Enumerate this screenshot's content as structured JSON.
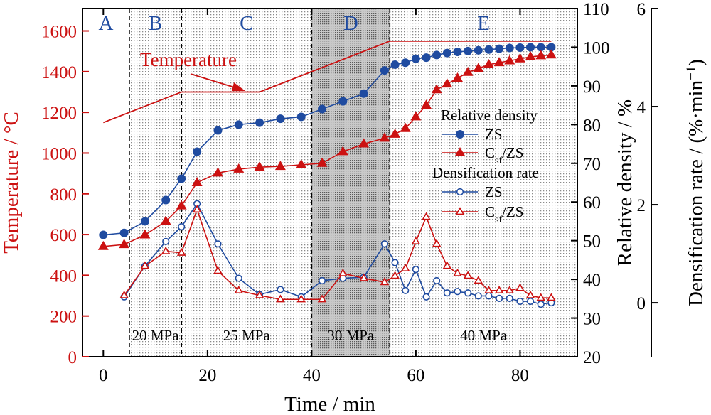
{
  "chart_data": {
    "type": "line",
    "x_axis": {
      "label": "Time / min",
      "range": [
        -4,
        91
      ],
      "ticks": [
        0,
        20,
        40,
        60,
        80
      ]
    },
    "y_left": {
      "label": "Temperature / °C",
      "color": "#cc1111",
      "range": [
        0,
        1710
      ],
      "ticks": [
        0,
        200,
        400,
        600,
        800,
        1000,
        1200,
        1400,
        1600
      ]
    },
    "y_right1": {
      "label": "Relative density / %",
      "range": [
        20,
        110
      ],
      "ticks": [
        20,
        30,
        40,
        50,
        60,
        70,
        80,
        90,
        100,
        110
      ]
    },
    "y_right2": {
      "label_main": "Densification rate / (%·min",
      "label_sup": "−1",
      "label_end": ")",
      "range": [
        -1.1,
        6
      ],
      "ticks": [
        0,
        2,
        4,
        6
      ]
    },
    "stages": [
      {
        "label": "A",
        "x0": -4,
        "x1": 5,
        "shade": "none"
      },
      {
        "label": "B",
        "x0": 5,
        "x1": 15,
        "shade": "light",
        "pressure": "20 MPa"
      },
      {
        "label": "C",
        "x0": 15,
        "x1": 40,
        "shade": "light",
        "pressure": "25 MPa"
      },
      {
        "label": "D",
        "x0": 40,
        "x1": 55,
        "shade": "dark",
        "pressure": "30 MPa"
      },
      {
        "label": "E",
        "x0": 55,
        "x1": 91,
        "shade": "light",
        "pressure": "40 MPa"
      }
    ],
    "stage_boundaries": [
      5,
      15,
      40,
      55
    ],
    "temperature": {
      "name": "Temperature",
      "color": "#cc1111",
      "x": [
        0,
        15,
        30,
        55,
        86
      ],
      "y": [
        1150,
        1300,
        1300,
        1550,
        1550
      ]
    },
    "series": [
      {
        "name": "ZS",
        "group": "Relative density",
        "axis": "y_right1",
        "color": "#1f4ba0",
        "marker": "circle",
        "filled": true,
        "x": [
          0,
          4,
          8,
          12,
          15,
          18,
          22,
          26,
          30,
          34,
          38,
          42,
          46,
          50,
          54,
          56,
          58,
          60,
          62,
          64,
          66,
          68,
          70,
          72,
          74,
          76,
          78,
          80,
          82,
          84,
          86
        ],
        "y": [
          51.5,
          52,
          55,
          60.5,
          66,
          73,
          78.5,
          80,
          80.5,
          81.5,
          82,
          84,
          86,
          88,
          94,
          95.5,
          96,
          97,
          97.3,
          98,
          98.5,
          98.8,
          99,
          99.2,
          99.4,
          99.6,
          99.8,
          99.9,
          100,
          100,
          100
        ]
      },
      {
        "name": "Csf/ZS",
        "group": "Relative density",
        "axis": "y_right1",
        "color": "#cc1111",
        "marker": "triangle",
        "filled": true,
        "x": [
          0,
          4,
          8,
          12,
          15,
          18,
          22,
          26,
          30,
          34,
          38,
          42,
          46,
          50,
          54,
          56,
          58,
          60,
          62,
          64,
          66,
          68,
          70,
          72,
          74,
          76,
          78,
          80,
          82,
          84,
          86
        ],
        "y": [
          48.5,
          49,
          51.5,
          55,
          59,
          65,
          67.5,
          68.5,
          69,
          69.2,
          69.6,
          70,
          73,
          75,
          76.5,
          77.5,
          79,
          82,
          85,
          89,
          90.5,
          92,
          93.5,
          94.5,
          95.5,
          96,
          96.5,
          97,
          97.5,
          97.8,
          98
        ]
      },
      {
        "name": "ZS",
        "group": "Densification rate",
        "axis": "y_right2",
        "color": "#1f4ba0",
        "marker": "circle",
        "filled": false,
        "x": [
          4,
          8,
          12,
          15,
          18,
          22,
          26,
          30,
          34,
          38,
          42,
          46,
          50,
          54,
          56,
          58,
          60,
          62,
          64,
          66,
          68,
          70,
          72,
          74,
          76,
          78,
          80,
          82,
          84,
          86
        ],
        "y": [
          0.12,
          0.75,
          1.25,
          1.55,
          2.02,
          1.2,
          0.5,
          0.17,
          0.27,
          0.12,
          0.45,
          0.5,
          0.52,
          1.2,
          0.82,
          0.25,
          0.68,
          0.12,
          0.45,
          0.2,
          0.23,
          0.2,
          0.14,
          0.14,
          0.09,
          0.09,
          0.03,
          0.03,
          -0.03,
          0.0
        ]
      },
      {
        "name": "Csf/ZS",
        "group": "Densification rate",
        "axis": "y_right2",
        "color": "#cc1111",
        "marker": "triangle",
        "filled": false,
        "x": [
          4,
          8,
          12,
          15,
          18,
          22,
          26,
          30,
          34,
          38,
          42,
          46,
          50,
          54,
          56,
          58,
          60,
          62,
          64,
          66,
          68,
          70,
          72,
          74,
          76,
          78,
          80,
          82,
          84,
          86
        ],
        "y": [
          0.15,
          0.75,
          1.05,
          1.02,
          1.9,
          0.65,
          0.25,
          0.15,
          0.07,
          0.07,
          0.07,
          0.6,
          0.5,
          0.42,
          0.55,
          0.7,
          1.25,
          1.75,
          1.2,
          0.75,
          0.6,
          0.55,
          0.45,
          0.25,
          0.25,
          0.25,
          0.3,
          0.15,
          0.1,
          0.1
        ]
      }
    ],
    "legend": {
      "position": "right, mid",
      "group1": "Relative density",
      "group2": "Densification rate",
      "item_zs": "ZS",
      "item_csf_main": "C",
      "item_csf_sub": "sf",
      "item_csf_end": "/ZS"
    },
    "annotations": {
      "temperature_label": "Temperature"
    },
    "colors": {
      "red": "#cc1111",
      "blue": "#1f4ba0",
      "shade_light": "#d6d6d6",
      "shade_dark": "#a8a8a8"
    }
  }
}
